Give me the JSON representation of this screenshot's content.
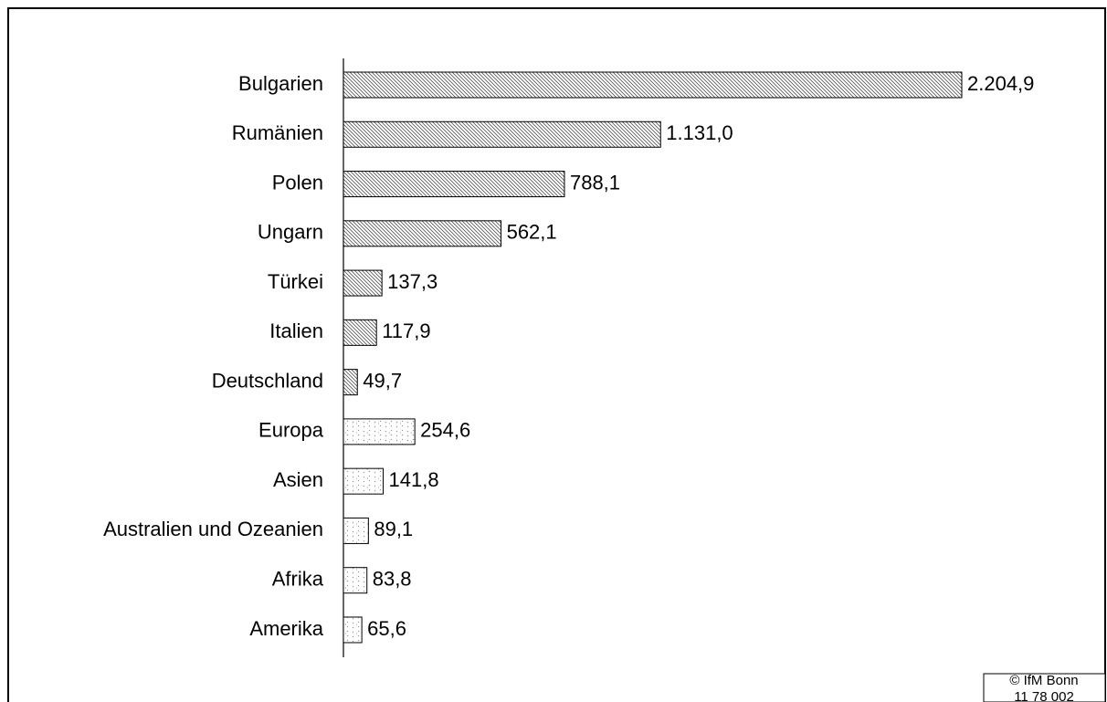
{
  "chart_data": {
    "type": "bar",
    "orientation": "horizontal",
    "categories": [
      "Bulgarien",
      "Rumänien",
      "Polen",
      "Ungarn",
      "Türkei",
      "Italien",
      "Deutschland",
      "Europa",
      "Asien",
      "Australien und Ozeanien",
      "Afrika",
      "Amerika"
    ],
    "values": [
      2204.9,
      1131.0,
      788.1,
      562.1,
      137.3,
      117.9,
      49.7,
      254.6,
      141.8,
      89.1,
      83.8,
      65.6
    ],
    "value_labels": [
      "2.204,9",
      "1.131,0",
      "788,1",
      "562,1",
      "137,3",
      "117,9",
      "49,7",
      "254,6",
      "141,8",
      "89,1",
      "83,8",
      "65,6"
    ],
    "patterns": [
      "hatch",
      "hatch",
      "hatch",
      "hatch",
      "hatch",
      "hatch",
      "hatch",
      "dots",
      "dots",
      "dots",
      "dots",
      "dots"
    ],
    "source": [
      "© IfM Bonn",
      "11 78 002"
    ]
  }
}
